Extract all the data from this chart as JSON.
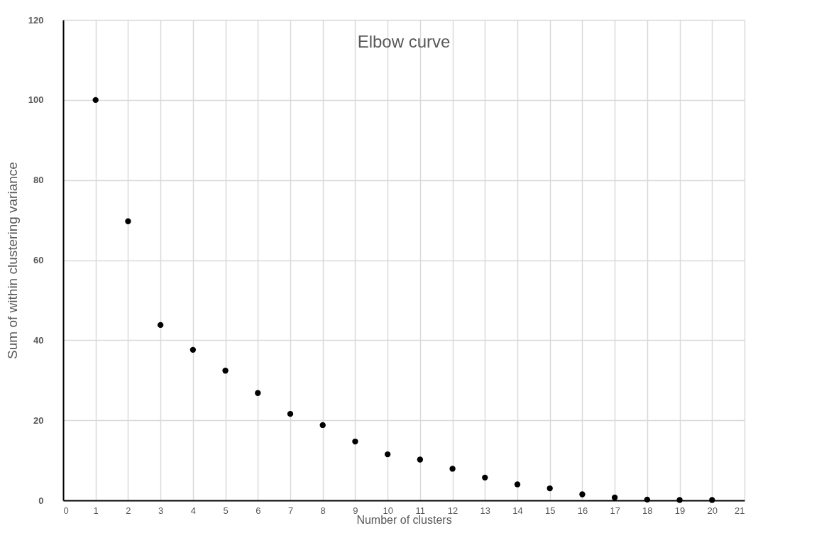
{
  "chart_data": {
    "type": "scatter",
    "title": "Elbow curve",
    "xlabel": "Number of clusters",
    "ylabel": "Sum of within clustering variance",
    "x": [
      1,
      2,
      3,
      4,
      5,
      6,
      7,
      8,
      9,
      10,
      11,
      12,
      13,
      14,
      15,
      16,
      17,
      18,
      19,
      20
    ],
    "series": [
      {
        "color": "#000000",
        "values": [
          100,
          69.7,
          43.8,
          37.6,
          32.4,
          26.8,
          21.6,
          18.8,
          14.7,
          11.5,
          10.2,
          7.9,
          5.7,
          4.0,
          3.0,
          1.5,
          0.7,
          0.2,
          0.1,
          0.1
        ]
      }
    ],
    "xlim": [
      0,
      21
    ],
    "xticks": [
      0,
      1,
      2,
      3,
      4,
      5,
      6,
      7,
      8,
      9,
      10,
      11,
      12,
      13,
      14,
      15,
      16,
      17,
      18,
      19,
      20,
      21
    ],
    "ylim": [
      0,
      120
    ],
    "yticks": [
      0,
      20,
      40,
      60,
      80,
      100,
      120
    ],
    "grid": true,
    "marker": "circle",
    "legend": false
  }
}
